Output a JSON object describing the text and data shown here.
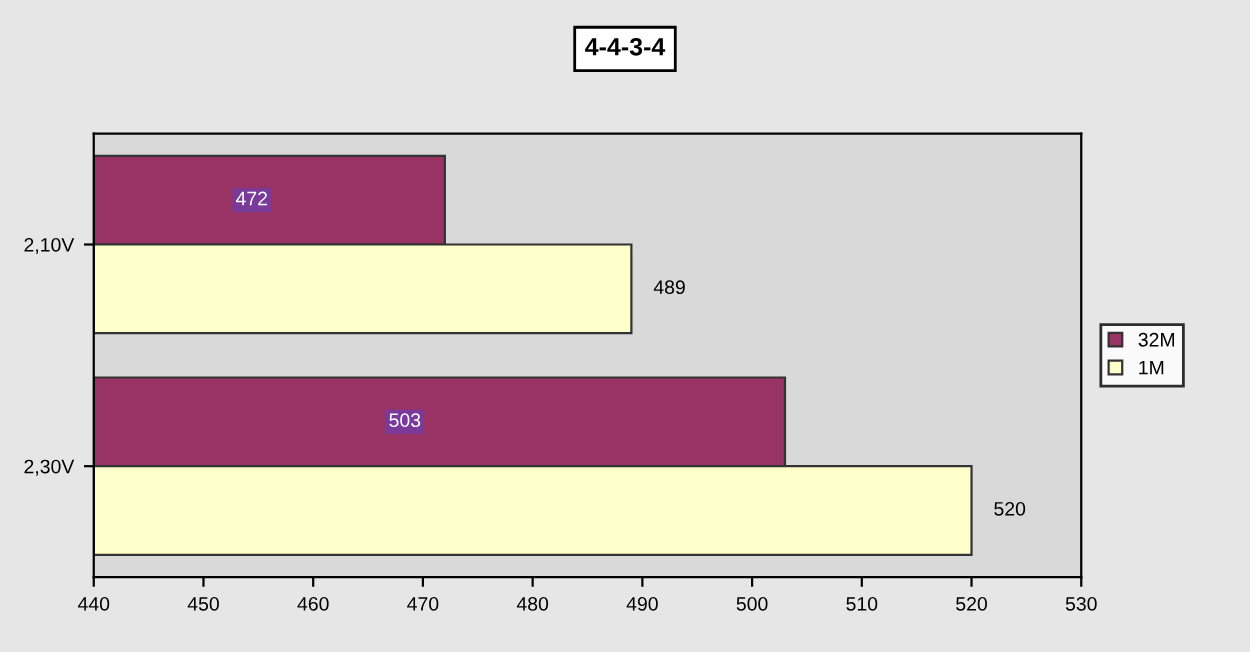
{
  "chart_data": {
    "type": "bar",
    "orientation": "horizontal",
    "title": "4-4-3-4",
    "categories": [
      "2,10V",
      "2,30V"
    ],
    "series": [
      {
        "name": "32M",
        "color": "#993366",
        "values": [
          472,
          503
        ]
      },
      {
        "name": "1M",
        "color": "#ffffcc",
        "values": [
          489,
          520
        ]
      }
    ],
    "xlim": [
      440,
      530
    ],
    "xticks": [
      440,
      450,
      460,
      470,
      480,
      490,
      500,
      510,
      520,
      530
    ],
    "data_labels": true,
    "legend": "right",
    "grid": false
  }
}
